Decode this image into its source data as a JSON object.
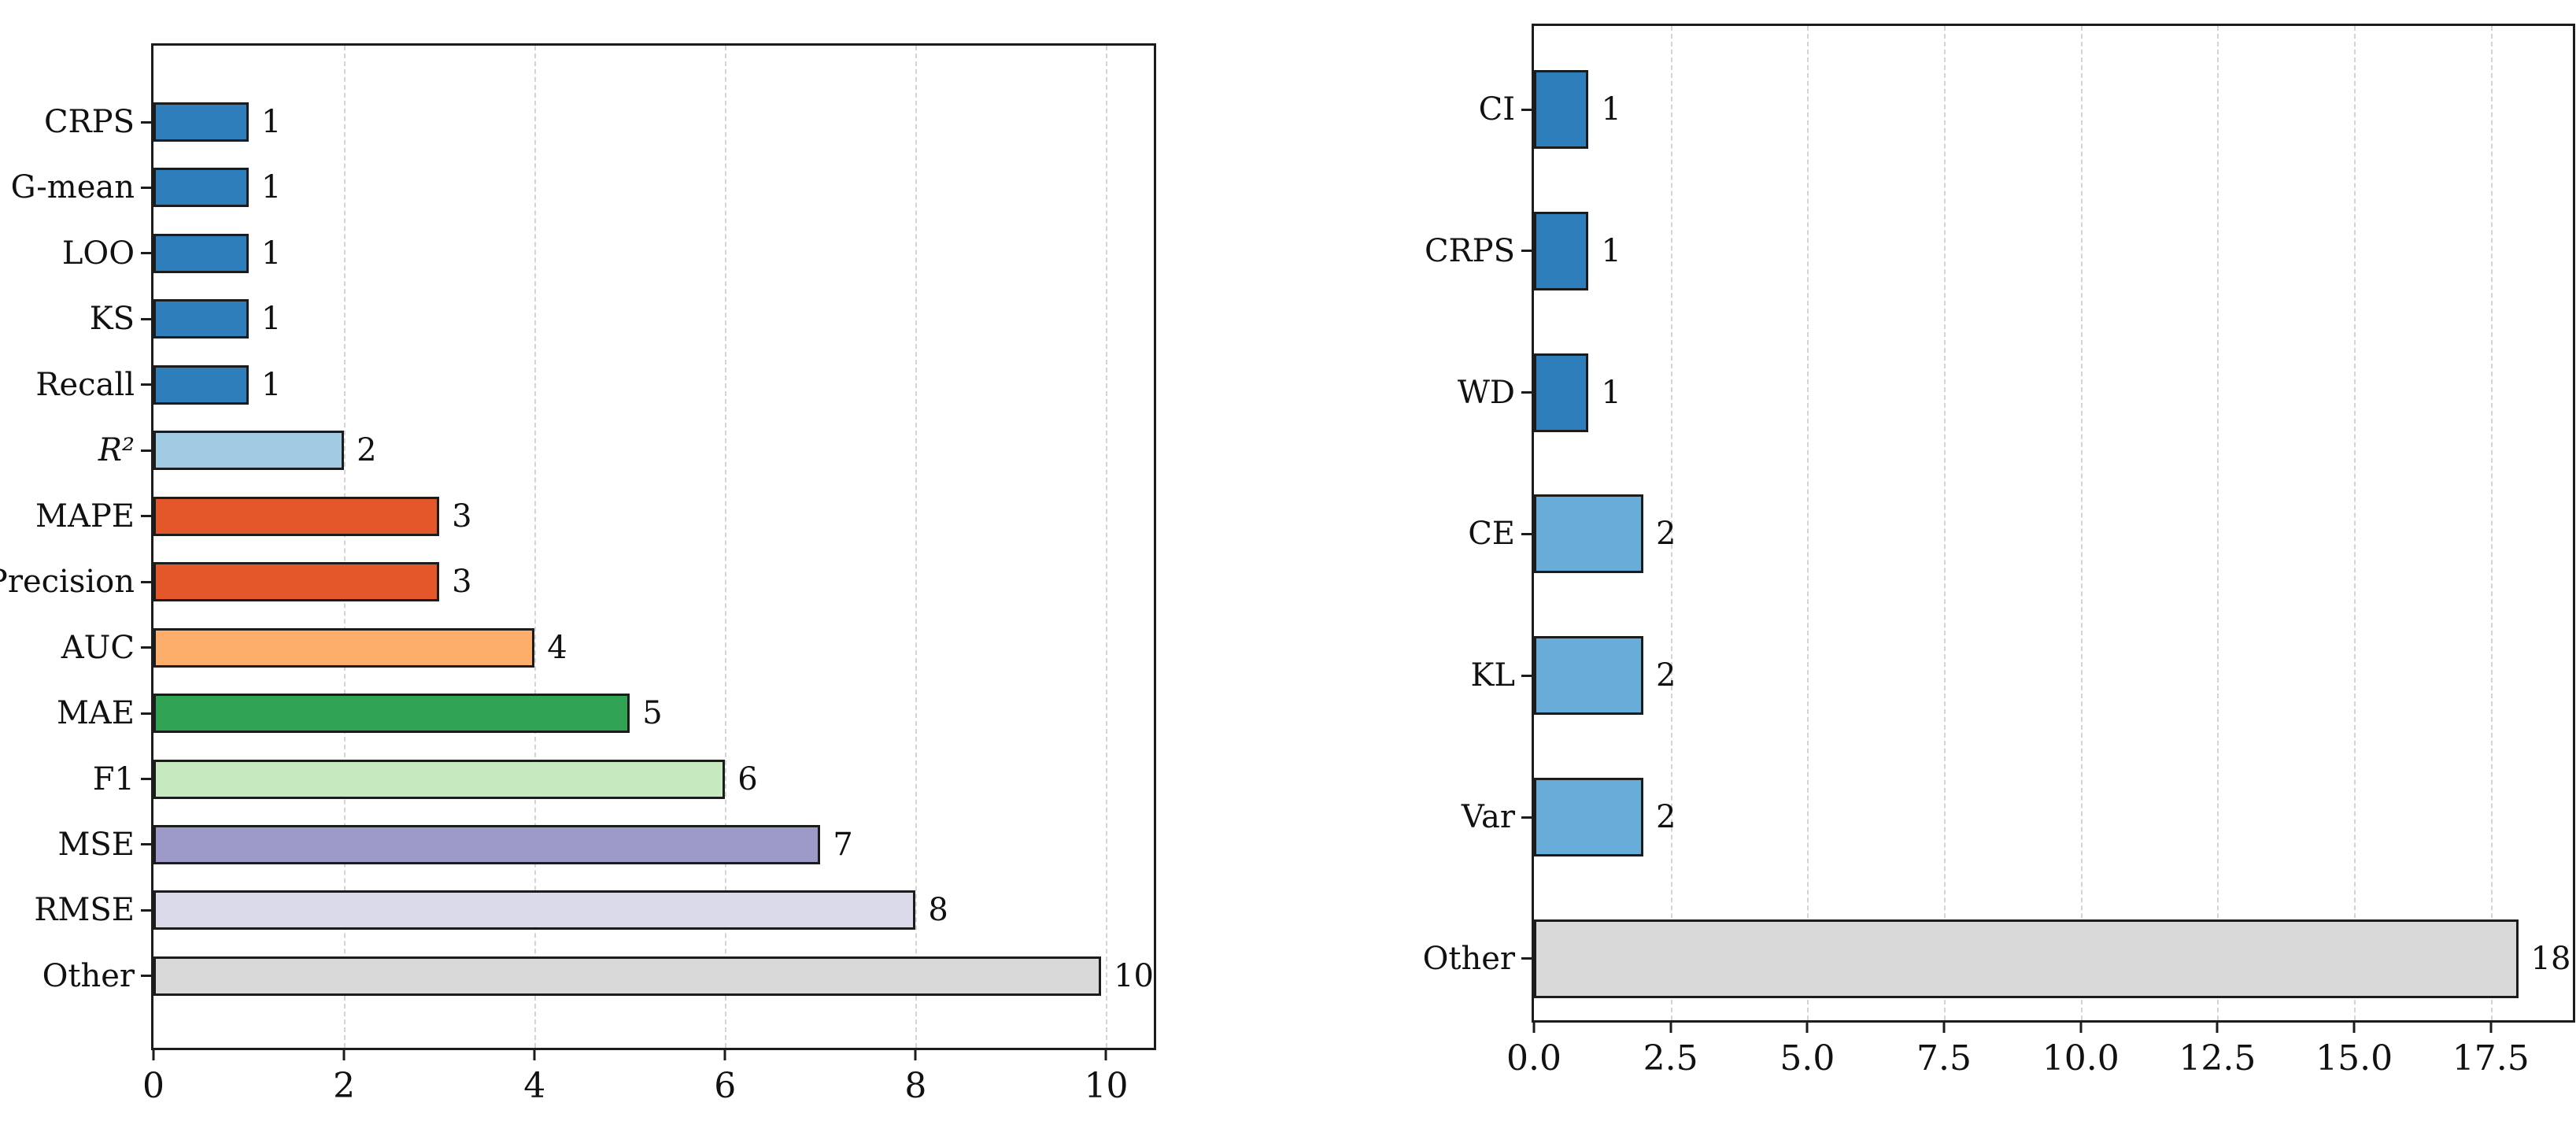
{
  "page": {
    "background": "#ffffff"
  },
  "style": {
    "bar_edge_color": "#1c1c1c",
    "grid_color": "#d4d4d4",
    "text_color": "#111111"
  },
  "chart_data": [
    {
      "type": "bar",
      "orientation": "horizontal",
      "title": "",
      "xlabel": "",
      "ylabel": "",
      "grid": "vertical-dashed",
      "legend": "none",
      "xlim": [
        0,
        10.5
      ],
      "xticks": [
        0,
        2,
        4,
        6,
        8,
        10
      ],
      "xtick_labels": [
        "0",
        "2",
        "4",
        "6",
        "8",
        "10"
      ],
      "categories": [
        "CRPS",
        "G-mean",
        "LOO",
        "KS",
        "Recall",
        "R²",
        "MAPE",
        "Precision",
        "AUC",
        "MAE",
        "F1",
        "MSE",
        "RMSE",
        "Other"
      ],
      "math_labels": [
        "R²"
      ],
      "values": [
        1,
        1,
        1,
        1,
        1,
        2,
        3,
        3,
        4,
        5,
        6,
        7,
        8,
        10
      ],
      "bar_labels": [
        "1",
        "1",
        "1",
        "1",
        "1",
        "2",
        "3",
        "3",
        "4",
        "5",
        "6",
        "7",
        "8",
        "10"
      ],
      "colors": [
        "#2e7ebc",
        "#2e7ebc",
        "#2e7ebc",
        "#2e7ebc",
        "#2e7ebc",
        "#a0cbe2",
        "#e4572a",
        "#e4572a",
        "#fdae6b",
        "#31a354",
        "#c7e9c0",
        "#9e9ac8",
        "#dadaeb",
        "#d9d9d9"
      ]
    },
    {
      "type": "bar",
      "orientation": "horizontal",
      "title": "",
      "xlabel": "",
      "ylabel": "",
      "grid": "vertical-dashed",
      "legend": "none",
      "xlim": [
        0,
        19.0
      ],
      "xticks": [
        0,
        2.5,
        5,
        7.5,
        10,
        12.5,
        15,
        17.5
      ],
      "xtick_labels": [
        "0.0",
        "2.5",
        "5.0",
        "7.5",
        "10.0",
        "12.5",
        "15.0",
        "17.5"
      ],
      "categories": [
        "CI",
        "CRPS",
        "WD",
        "CE",
        "KL",
        "Var",
        "Other"
      ],
      "math_labels": [],
      "values": [
        1,
        1,
        1,
        2,
        2,
        2,
        18
      ],
      "bar_labels": [
        "1",
        "1",
        "1",
        "2",
        "2",
        "2",
        "18"
      ],
      "colors": [
        "#2e7ebc",
        "#2e7ebc",
        "#2e7ebc",
        "#68acd9",
        "#68acd9",
        "#68acd9",
        "#d9d9d9"
      ]
    }
  ]
}
